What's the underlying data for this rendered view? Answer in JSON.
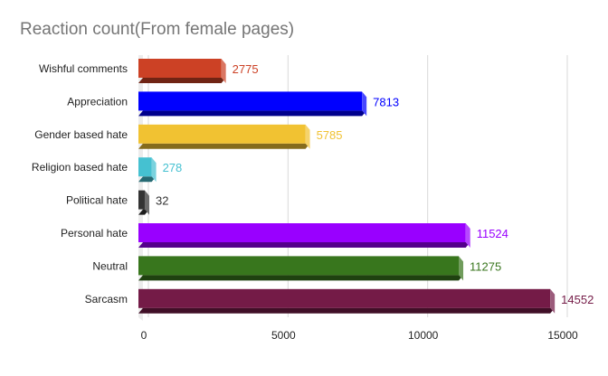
{
  "chart_data": {
    "type": "bar",
    "orientation": "horizontal",
    "title": "Reaction count(From female pages)",
    "categories": [
      "Wishful comments",
      "Appreciation",
      "Gender based hate",
      "Religion based hate",
      "Political hate",
      "Personal hate",
      "Neutral",
      "Sarcasm"
    ],
    "values": [
      2775,
      7813,
      5785,
      278,
      32,
      11524,
      11275,
      14552
    ],
    "colors": [
      "#cc4125",
      "#0000ff",
      "#f1c232",
      "#45c1d1",
      "#333333",
      "#9900ff",
      "#38761d",
      "#741b47"
    ],
    "xticks": [
      0,
      5000,
      10000,
      15000
    ],
    "xlim": [
      0,
      15000
    ],
    "grid": true,
    "legend": "none",
    "style": "3d"
  }
}
